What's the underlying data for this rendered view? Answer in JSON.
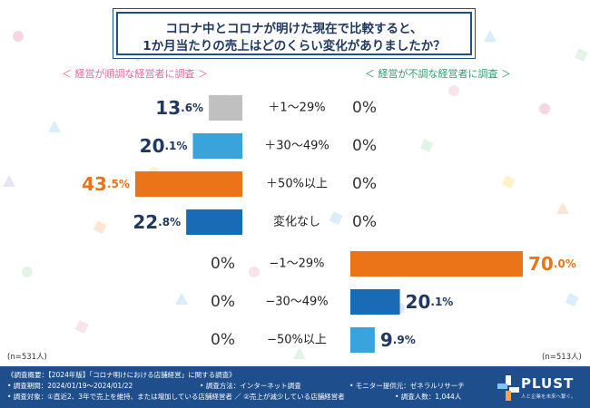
{
  "title": {
    "line1": "コロナ中とコロナが明けた現在で比較すると、",
    "line2": "1か月当たりの売上はどのくらい変化がありましたか？"
  },
  "subheads": {
    "left": "＜ 経営が順調な経営者に調査 ＞",
    "right": "＜ 経営が不調な経営者に調査 ＞"
  },
  "sample": {
    "left": "(n=531人)",
    "right": "(n=513人)"
  },
  "chart_data": {
    "type": "bar",
    "categories": [
      "＋1～29%",
      "＋30～49%",
      "＋50%以上",
      "変化なし",
      "−1～29%",
      "−30～49%",
      "−50%以上"
    ],
    "series": [
      {
        "name": "経営が順調な経営者",
        "values": [
          13.6,
          20.1,
          43.5,
          22.8,
          0,
          0,
          0
        ],
        "labels": [
          "13.6%",
          "20.1%",
          "43.5%",
          "22.8%",
          "0%",
          "0%",
          "0%"
        ]
      },
      {
        "name": "経営が不調な経営者",
        "values": [
          0,
          0,
          0,
          0,
          70.0,
          20.1,
          9.9
        ],
        "labels": [
          "0%",
          "0%",
          "0%",
          "0%",
          "70.0%",
          "20.1%",
          "9.9%"
        ]
      }
    ],
    "bar_colors": [
      "#c0c0c0",
      "#3aa3dc",
      "#ea7417",
      "#1a6bb5",
      "#ea7417",
      "#1a6bb5",
      "#3aa3dc"
    ],
    "highlight_color": "#ea7417",
    "text_color": "#1f3864",
    "xlim": [
      0,
      70
    ]
  },
  "footer": {
    "title": "《調査概要：【2024年版】「コロナ明けにおける店舗経営」に関する調査》",
    "period": "• 調査期間：2024/01/19～2024/01/22",
    "method": "• 調査方法：インターネット調査",
    "monitor": "• モニター提供元：ゼネラルリサーチ",
    "target": "• 調査対象：①直近2、3年で売上を維持、または増加している店舗経営者 ／ ②売上が減少している店舗経営者",
    "count": "• 調査人数：1,044人",
    "logo": "PLUST",
    "logo_tagline": "人と企業を未来へ繋ぐ。"
  },
  "colors": {
    "navy": "#1f4e8c",
    "pink": "#e6679a",
    "green": "#2e9e6e"
  }
}
